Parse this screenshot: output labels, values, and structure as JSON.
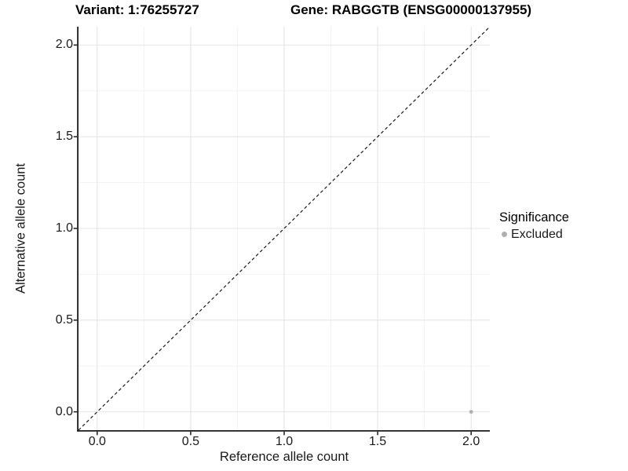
{
  "chart_data": {
    "type": "scatter",
    "titles": {
      "left": "Variant: 1:76255727",
      "right": "Gene: RABGGTB (ENSG00000137955)"
    },
    "xlabel": "Reference allele count",
    "ylabel": "Alternative allele count",
    "xlim": [
      -0.1,
      2.1
    ],
    "ylim": [
      -0.1,
      2.1
    ],
    "x_tick_values": [
      0,
      0.5,
      1,
      1.5,
      2
    ],
    "x_tick_labels": [
      "0.0",
      "0.5",
      "1.0",
      "1.5",
      "2.0"
    ],
    "y_tick_values": [
      0,
      0.5,
      1,
      1.5,
      2
    ],
    "y_tick_labels": [
      "0.0",
      "0.5",
      "1.0",
      "1.5",
      "2.0"
    ],
    "minor_breaks": [
      0.25,
      0.75,
      1.25,
      1.75
    ],
    "grid": "major+minor",
    "series": [
      {
        "name": "Excluded",
        "color": "#AFAFAF",
        "points": [
          {
            "x": 2.0,
            "y": 0.0
          }
        ]
      }
    ],
    "reference_line": {
      "kind": "identity y=x",
      "from": [
        -0.1,
        -0.1
      ],
      "to": [
        2.1,
        2.1
      ],
      "style": "dashed",
      "color": "#1a1a1a"
    },
    "legend": {
      "title": "Significance",
      "position": "right",
      "items": [
        {
          "label": "Excluded",
          "color": "#AFAFAF",
          "marker": "circle"
        }
      ]
    }
  },
  "colors": {
    "grid_major": "#E4E4E4",
    "grid_minor": "#F2F2F2",
    "axis": "#1A1A1A",
    "text": "#1A1A1A",
    "background": "#FFFFFF"
  }
}
